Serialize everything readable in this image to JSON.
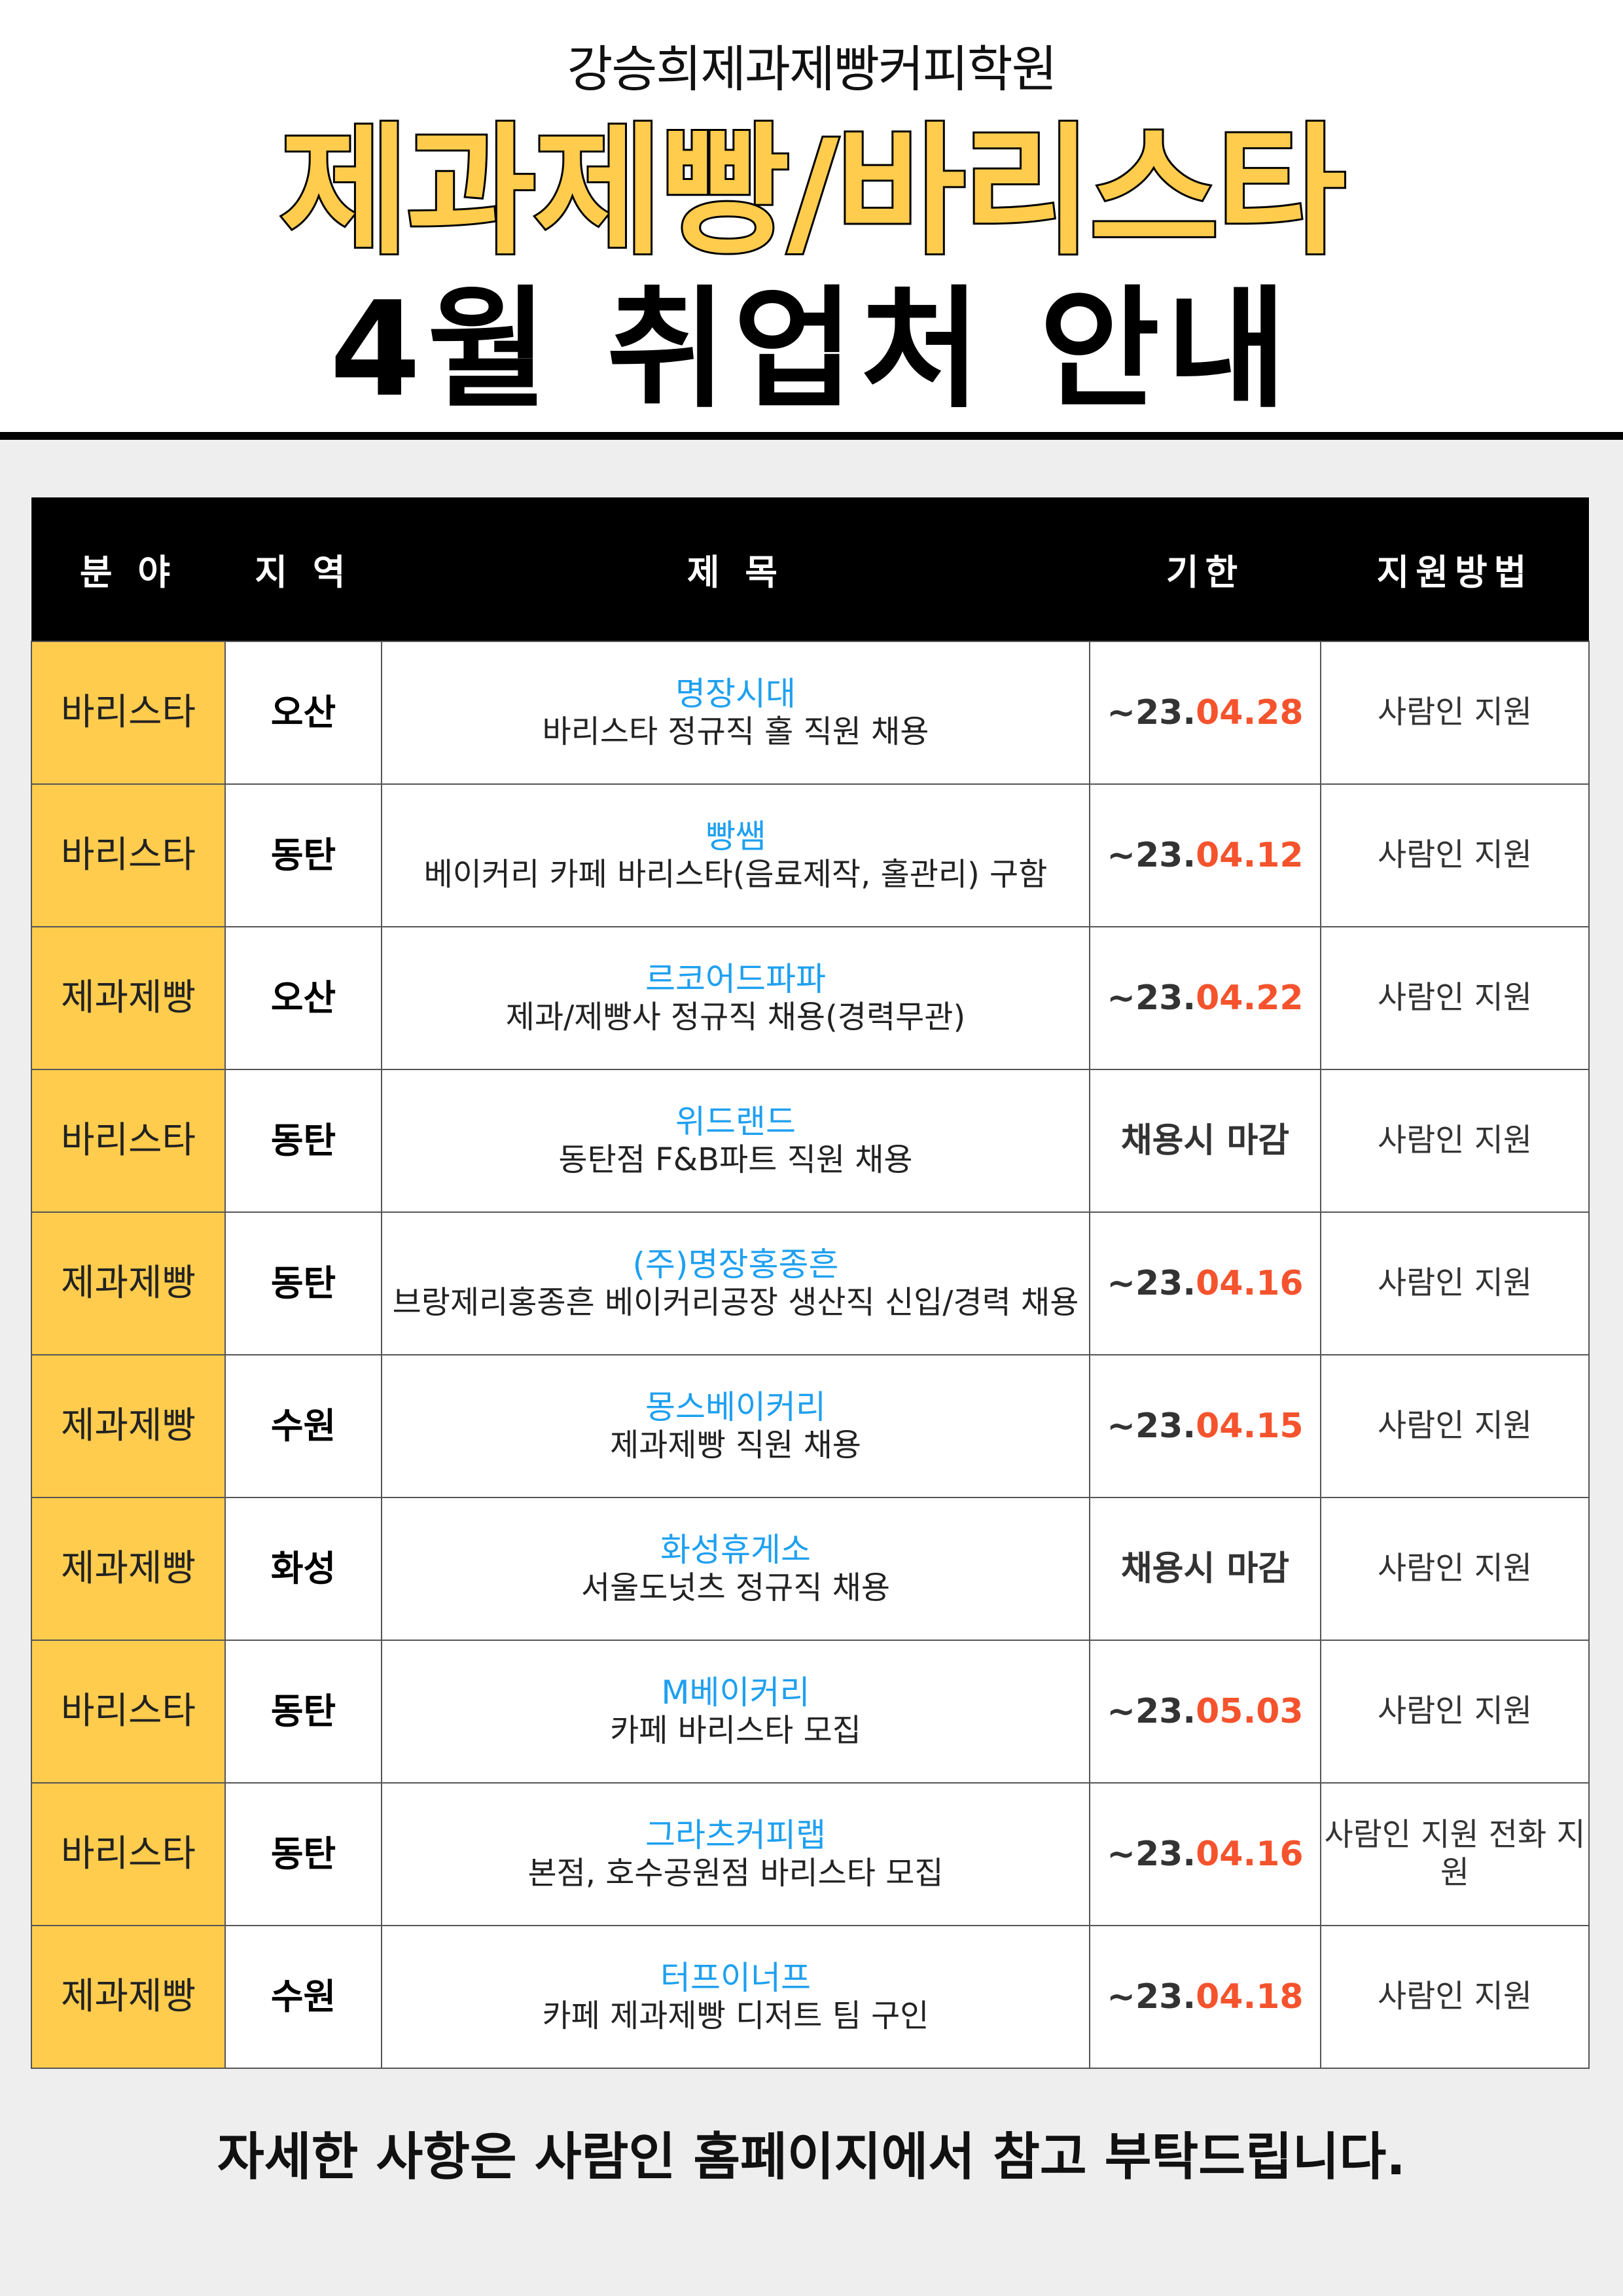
{
  "header": {
    "academy": "강승희제과제빵커피학원",
    "title": "제과제빵/바리스타",
    "subtitle": "4월 취업처 안내"
  },
  "colors": {
    "accent_yellow": "#FFCC4D",
    "company_blue": "#1EA0F0",
    "date_red": "#F4532D"
  },
  "table": {
    "columns": [
      "분 야",
      "지 역",
      "제 목",
      "기한",
      "지원방법"
    ],
    "rows": [
      {
        "field": "바리스타",
        "region": "오산",
        "company": "명장시대",
        "desc": "바리스타 정규직 홀 직원 채용",
        "deadline_prefix": "~23.",
        "deadline_hl": "04.28",
        "method": "사람인 지원"
      },
      {
        "field": "바리스타",
        "region": "동탄",
        "company": "빵쌤",
        "desc": "베이커리 카페 바리스타(음료제작, 홀관리) 구함",
        "deadline_prefix": "~23.",
        "deadline_hl": "04.12",
        "method": "사람인 지원"
      },
      {
        "field": "제과제빵",
        "region": "오산",
        "company": "르코어드파파",
        "desc": "제과/제빵사 정규직 채용(경력무관)",
        "deadline_prefix": "~23.",
        "deadline_hl": "04.22",
        "method": "사람인 지원"
      },
      {
        "field": "바리스타",
        "region": "동탄",
        "company": "위드랜드",
        "desc": "동탄점 F&B파트 직원 채용",
        "deadline_prefix": "채용시 마감",
        "deadline_hl": "",
        "method": "사람인 지원"
      },
      {
        "field": "제과제빵",
        "region": "동탄",
        "company": "(주)명장홍종흔",
        "desc": "브랑제리홍종흔 베이커리공장 생산직 신입/경력 채용",
        "deadline_prefix": "~23.",
        "deadline_hl": "04.16",
        "method": "사람인 지원"
      },
      {
        "field": "제과제빵",
        "region": "수원",
        "company": "몽스베이커리",
        "desc": "제과제빵 직원 채용",
        "deadline_prefix": "~23.",
        "deadline_hl": "04.15",
        "method": "사람인 지원"
      },
      {
        "field": "제과제빵",
        "region": "화성",
        "company": "화성휴게소",
        "desc": "서울도넛츠 정규직 채용",
        "deadline_prefix": "채용시 마감",
        "deadline_hl": "",
        "method": "사람인 지원"
      },
      {
        "field": "바리스타",
        "region": "동탄",
        "company": "M베이커리",
        "desc": "카페 바리스타 모집",
        "deadline_prefix": "~23.",
        "deadline_hl": "05.03",
        "method": "사람인 지원"
      },
      {
        "field": "바리스타",
        "region": "동탄",
        "company": "그라츠커피랩",
        "desc": "본점, 호수공원점 바리스타 모집",
        "deadline_prefix": "~23.",
        "deadline_hl": "04.16",
        "method": "사람인 지원 전화 지원"
      },
      {
        "field": "제과제빵",
        "region": "수원",
        "company": "터프이너프",
        "desc": "카페 제과제빵 디저트 팀 구인",
        "deadline_prefix": "~23.",
        "deadline_hl": "04.18",
        "method": "사람인 지원"
      }
    ]
  },
  "footer": {
    "note": "자세한 사항은 사람인 홈페이지에서 참고 부탁드립니다."
  }
}
